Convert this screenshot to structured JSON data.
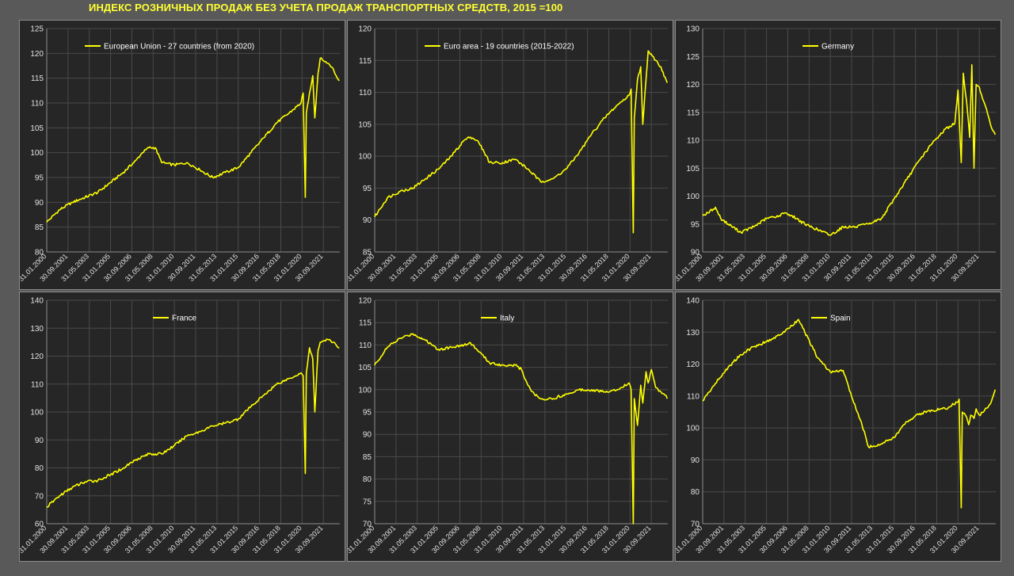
{
  "title": "ИНДЕКС РОЗНИЧНЫХ ПРОДАЖ БЕЗ УЧЕТА ПРОДАЖ ТРАНСПОРТНЫХ СРЕДСТВ, 2015 =100",
  "line_color": "#ffff00",
  "chart_data": [
    {
      "type": "line",
      "series": [
        {
          "name": "European Union - 27 countries (from 2020)"
        }
      ],
      "ylim": [
        80,
        125
      ],
      "yticks": [
        80,
        85,
        90,
        95,
        100,
        105,
        110,
        115,
        120,
        125
      ],
      "xticks": [
        "31.01.2000",
        "30.09.2001",
        "31.05.2003",
        "31.01.2005",
        "30.09.2006",
        "31.05.2008",
        "31.01.2010",
        "30.09.2011",
        "31.05.2013",
        "31.01.2015",
        "30.09.2016",
        "31.05.2018",
        "31.01.2020",
        "30.09.2021"
      ],
      "x": [
        "2000-01",
        "2001-01",
        "2002-01",
        "2003-01",
        "2004-01",
        "2005-01",
        "2006-01",
        "2007-01",
        "2007-07",
        "2008-01",
        "2008-07",
        "2009-01",
        "2010-01",
        "2011-01",
        "2012-01",
        "2013-01",
        "2014-01",
        "2015-01",
        "2016-01",
        "2017-01",
        "2018-01",
        "2019-01",
        "2019-12",
        "2020-02",
        "2020-04",
        "2020-05",
        "2020-08",
        "2020-11",
        "2021-01",
        "2021-04",
        "2021-06",
        "2021-09",
        "2022-01",
        "2022-06",
        "2022-09",
        "2022-12"
      ],
      "values": [
        86,
        88.5,
        90,
        91,
        92,
        94,
        96,
        98.5,
        100,
        101,
        101,
        98,
        97.5,
        98,
        96.5,
        95,
        96,
        97,
        100,
        103,
        106,
        108,
        110,
        112,
        91,
        108,
        112,
        115.5,
        107,
        116,
        119,
        118.5,
        118,
        117,
        115.5,
        114.5
      ]
    },
    {
      "type": "line",
      "series": [
        {
          "name": "Euro area - 19 countries  (2015-2022)"
        }
      ],
      "ylim": [
        85,
        120
      ],
      "yticks": [
        85,
        90,
        95,
        100,
        105,
        110,
        115,
        120
      ],
      "xticks": [
        "31.01.2000",
        "30.09.2001",
        "31.05.2003",
        "31.01.2005",
        "30.09.2006",
        "31.05.2008",
        "31.01.2010",
        "30.09.2011",
        "31.05.2013",
        "31.01.2015",
        "30.09.2016",
        "31.05.2018",
        "31.01.2020",
        "30.09.2021"
      ],
      "x": [
        "2000-01",
        "2001-01",
        "2002-01",
        "2003-01",
        "2004-01",
        "2005-01",
        "2006-01",
        "2007-01",
        "2007-07",
        "2008-01",
        "2008-07",
        "2009-01",
        "2010-01",
        "2011-01",
        "2012-01",
        "2013-01",
        "2014-01",
        "2015-01",
        "2016-01",
        "2017-01",
        "2018-01",
        "2019-01",
        "2019-12",
        "2020-02",
        "2020-04",
        "2020-05",
        "2020-08",
        "2020-11",
        "2021-01",
        "2021-04",
        "2021-06",
        "2021-09",
        "2022-01",
        "2022-06",
        "2022-09",
        "2022-12"
      ],
      "values": [
        90.5,
        93.5,
        94.5,
        95,
        96.5,
        98,
        100,
        102.5,
        103,
        102.5,
        101,
        99,
        99,
        99.5,
        98,
        96,
        96.5,
        98,
        100.5,
        103.5,
        106,
        108,
        109.5,
        110.5,
        88,
        106,
        112,
        114,
        105,
        112,
        116.5,
        116,
        115,
        114,
        112.5,
        111.5
      ]
    },
    {
      "type": "line",
      "series": [
        {
          "name": "Germany"
        }
      ],
      "ylim": [
        90,
        130
      ],
      "yticks": [
        90,
        95,
        100,
        105,
        110,
        115,
        120,
        125,
        130
      ],
      "xticks": [
        "31.01.2000",
        "30.09.2001",
        "31.05.2003",
        "31.01.2005",
        "30.09.2006",
        "31.05.2008",
        "31.01.2010",
        "30.09.2011",
        "31.05.2013",
        "31.01.2015",
        "30.09.2016",
        "31.05.2018",
        "31.01.2020",
        "30.09.2021"
      ],
      "x": [
        "2000-01",
        "2000-06",
        "2001-01",
        "2001-06",
        "2002-01",
        "2003-01",
        "2004-01",
        "2005-01",
        "2006-01",
        "2006-06",
        "2007-01",
        "2008-01",
        "2009-01",
        "2010-01",
        "2011-01",
        "2012-01",
        "2013-01",
        "2014-01",
        "2015-01",
        "2016-01",
        "2017-01",
        "2018-01",
        "2019-01",
        "2019-10",
        "2020-01",
        "2020-04",
        "2020-06",
        "2020-09",
        "2020-12",
        "2021-02",
        "2021-04",
        "2021-06",
        "2021-09",
        "2022-01",
        "2022-06",
        "2022-09",
        "2022-12"
      ],
      "values": [
        96.5,
        97,
        98,
        96,
        95,
        93.5,
        94.5,
        96,
        96.5,
        97,
        96.5,
        95,
        94,
        93,
        94.5,
        94.5,
        95,
        96,
        99.5,
        103,
        106.5,
        109.5,
        112,
        113,
        119,
        106,
        122,
        117,
        110.5,
        123.5,
        105,
        120,
        119.5,
        117,
        114,
        112,
        111
      ]
    },
    {
      "type": "line",
      "series": [
        {
          "name": "France"
        }
      ],
      "ylim": [
        60,
        140
      ],
      "yticks": [
        60,
        70,
        80,
        90,
        100,
        110,
        120,
        130,
        140
      ],
      "xticks": [
        "31.01.2000",
        "30.09.2001",
        "31.05.2003",
        "31.01.2005",
        "30.09.2006",
        "31.05.2008",
        "31.01.2010",
        "30.09.2011",
        "31.05.2013",
        "31.01.2015",
        "30.09.2016",
        "31.05.2018",
        "31.01.2020",
        "30.09.2021"
      ],
      "x": [
        "2000-01",
        "2001-01",
        "2002-01",
        "2003-01",
        "2004-01",
        "2005-01",
        "2006-01",
        "2007-01",
        "2008-01",
        "2009-01",
        "2010-01",
        "2011-01",
        "2012-01",
        "2013-01",
        "2014-01",
        "2015-01",
        "2016-01",
        "2017-01",
        "2018-01",
        "2019-01",
        "2019-12",
        "2020-02",
        "2020-04",
        "2020-05",
        "2020-08",
        "2020-11",
        "2021-01",
        "2021-04",
        "2021-06",
        "2021-09",
        "2022-01",
        "2022-06",
        "2022-09",
        "2022-12"
      ],
      "values": [
        66,
        70,
        73,
        75,
        75.5,
        77.5,
        80,
        83,
        85,
        85,
        88,
        91.5,
        93,
        95,
        96,
        97.5,
        102,
        106,
        110,
        112,
        114,
        113,
        78,
        114,
        123,
        119,
        100,
        122,
        125,
        125.5,
        126,
        125,
        124,
        123
      ]
    },
    {
      "type": "line",
      "series": [
        {
          "name": "Italy"
        }
      ],
      "ylim": [
        70,
        120
      ],
      "yticks": [
        70,
        75,
        80,
        85,
        90,
        95,
        100,
        105,
        110,
        115,
        120
      ],
      "xticks": [
        "31.01.2000",
        "30.09.2001",
        "31.05.2003",
        "31.01.2005",
        "30.09.2006",
        "31.05.2008",
        "31.01.2010",
        "30.09.2011",
        "31.05.2013",
        "31.01.2015",
        "30.09.2016",
        "31.05.2018",
        "31.01.2020",
        "30.09.2021"
      ],
      "x": [
        "2000-01",
        "2001-01",
        "2002-01",
        "2003-01",
        "2004-01",
        "2005-01",
        "2006-01",
        "2007-01",
        "2007-07",
        "2008-01",
        "2009-01",
        "2010-01",
        "2011-01",
        "2011-07",
        "2012-01",
        "2012-07",
        "2013-01",
        "2014-01",
        "2015-01",
        "2016-01",
        "2017-01",
        "2018-01",
        "2019-01",
        "2019-12",
        "2020-02",
        "2020-04",
        "2020-05",
        "2020-08",
        "2020-11",
        "2021-01",
        "2021-04",
        "2021-06",
        "2021-09",
        "2022-01",
        "2022-06",
        "2022-09",
        "2022-12"
      ],
      "values": [
        105.5,
        109.5,
        111.5,
        112.5,
        111,
        109,
        109.5,
        110,
        110.5,
        109,
        106,
        105.5,
        105.5,
        104.5,
        101,
        99,
        98,
        98,
        99,
        100,
        100,
        99.5,
        100,
        101.5,
        100,
        70,
        98,
        92,
        101,
        97,
        104,
        101.5,
        104.5,
        100.5,
        99.5,
        99,
        98
      ]
    },
    {
      "type": "line",
      "series": [
        {
          "name": "Spain"
        }
      ],
      "ylim": [
        70,
        140
      ],
      "yticks": [
        70,
        80,
        90,
        100,
        110,
        120,
        130,
        140
      ],
      "xticks": [
        "31.01.2000",
        "30.09.2001",
        "31.05.2003",
        "31.01.2005",
        "30.09.2006",
        "31.05.2008",
        "31.01.2010",
        "30.09.2011",
        "31.05.2013",
        "31.01.2015",
        "30.09.2016",
        "31.05.2018",
        "31.01.2020",
        "30.09.2021"
      ],
      "x": [
        "2000-01",
        "2001-01",
        "2002-01",
        "2003-01",
        "2004-01",
        "2005-01",
        "2006-01",
        "2007-01",
        "2007-07",
        "2008-01",
        "2009-01",
        "2010-01",
        "2011-01",
        "2012-01",
        "2012-06",
        "2013-01",
        "2014-01",
        "2015-01",
        "2016-01",
        "2017-01",
        "2018-01",
        "2019-01",
        "2019-12",
        "2020-02",
        "2020-04",
        "2020-05",
        "2020-08",
        "2020-11",
        "2021-01",
        "2021-04",
        "2021-06",
        "2021-09",
        "2022-01",
        "2022-06",
        "2022-09",
        "2022-12"
      ],
      "values": [
        108.5,
        114,
        119,
        123,
        125.5,
        127,
        129,
        132,
        134,
        130,
        122,
        117.5,
        118,
        106,
        102,
        94,
        95,
        97,
        102,
        104.5,
        105.5,
        106,
        108,
        109,
        75,
        105,
        104,
        101,
        104,
        103,
        106,
        104,
        105,
        107,
        109,
        112
      ]
    }
  ]
}
